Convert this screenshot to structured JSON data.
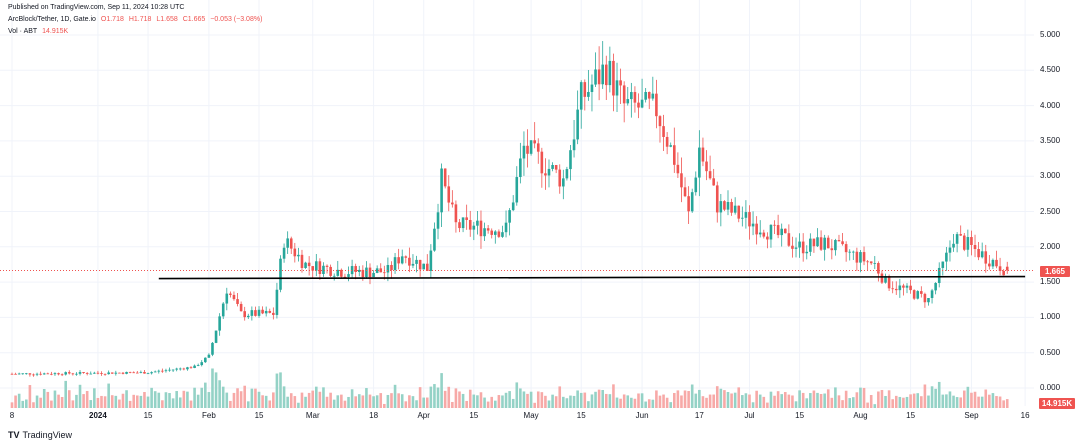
{
  "header": {
    "published": "Published on TradingView.com, Sep 11, 2024 10:28 UTC",
    "symbol": "ArcBlock/Tether, 1D, Gate.io",
    "ohlc": {
      "o": "O1.718",
      "h": "H1.718",
      "l": "L1.658",
      "c": "C1.665",
      "change": "−0.053 (−3.08%)"
    },
    "volume_label": "Vol · ABT",
    "volume_value": "14.915K"
  },
  "price_tag": "1.665",
  "volume_tag": "14.915K",
  "brand": "TradingView",
  "colors": {
    "up": "#26a69a",
    "down": "#ef5350",
    "up_volume": "#94d2c6",
    "down_volume": "#f7a9a7",
    "support_line": "#000000",
    "grid": "#f0f3fa"
  },
  "chart_data": {
    "type": "candlestick",
    "title": "ArcBlock/Tether, 1D, Gate.io",
    "y_ticks": [
      "5.000",
      "4.500",
      "4.000",
      "3.500",
      "3.000",
      "2.500",
      "2.000",
      "1.500",
      "1.000",
      "0.500",
      "0.000"
    ],
    "ylim": [
      0,
      5
    ],
    "x_ticks": [
      "8",
      "2024",
      "15",
      "Feb",
      "15",
      "Mar",
      "18",
      "Apr",
      "15",
      "May",
      "15",
      "Jun",
      "17",
      "Jul",
      "15",
      "Aug",
      "15",
      "Sep",
      "16"
    ],
    "x_start": "2023-12-08",
    "x_tick_dates": [
      "2023-12-08",
      "2024-01-01",
      "2024-01-15",
      "2024-02-01",
      "2024-02-15",
      "2024-03-01",
      "2024-03-18",
      "2024-04-01",
      "2024-04-15",
      "2024-05-01",
      "2024-05-15",
      "2024-06-01",
      "2024-06-17",
      "2024-07-01",
      "2024-07-15",
      "2024-08-01",
      "2024-08-15",
      "2024-09-01",
      "2024-09-16"
    ],
    "last_date": "2024-09-11",
    "last_price": 1.665,
    "support_level": 1.55,
    "support_from": "2024-01-18",
    "support_to": "2024-09-16",
    "price_path": [
      {
        "date": "2023-12-08",
        "price": 0.2
      },
      {
        "date": "2024-01-15",
        "price": 0.22
      },
      {
        "date": "2024-01-28",
        "price": 0.3
      },
      {
        "date": "2024-02-01",
        "price": 0.45
      },
      {
        "date": "2024-02-06",
        "price": 1.4
      },
      {
        "date": "2024-02-10",
        "price": 1.05
      },
      {
        "date": "2024-02-19",
        "price": 1.05
      },
      {
        "date": "2024-02-22",
        "price": 2.1
      },
      {
        "date": "2024-02-28",
        "price": 1.75
      },
      {
        "date": "2024-03-10",
        "price": 1.65
      },
      {
        "date": "2024-03-22",
        "price": 1.65
      },
      {
        "date": "2024-03-26",
        "price": 1.9
      },
      {
        "date": "2024-04-02",
        "price": 1.7
      },
      {
        "date": "2024-04-06",
        "price": 2.95
      },
      {
        "date": "2024-04-10",
        "price": 2.3
      },
      {
        "date": "2024-04-24",
        "price": 2.25
      },
      {
        "date": "2024-04-29",
        "price": 3.4
      },
      {
        "date": "2024-05-10",
        "price": 2.95
      },
      {
        "date": "2024-05-15",
        "price": 4.1
      },
      {
        "date": "2024-05-22",
        "price": 4.55
      },
      {
        "date": "2024-05-27",
        "price": 4.0
      },
      {
        "date": "2024-06-05",
        "price": 3.95
      },
      {
        "date": "2024-06-10",
        "price": 3.25
      },
      {
        "date": "2024-06-14",
        "price": 2.45
      },
      {
        "date": "2024-06-17",
        "price": 3.4
      },
      {
        "date": "2024-06-22",
        "price": 2.6
      },
      {
        "date": "2024-07-15",
        "price": 2.0
      },
      {
        "date": "2024-07-22",
        "price": 2.05
      },
      {
        "date": "2024-08-05",
        "price": 1.75
      },
      {
        "date": "2024-08-08",
        "price": 1.5
      },
      {
        "date": "2024-08-20",
        "price": 1.25
      },
      {
        "date": "2024-08-25",
        "price": 1.85
      },
      {
        "date": "2024-08-27",
        "price": 2.15
      },
      {
        "date": "2024-09-11",
        "price": 1.665
      }
    ]
  }
}
